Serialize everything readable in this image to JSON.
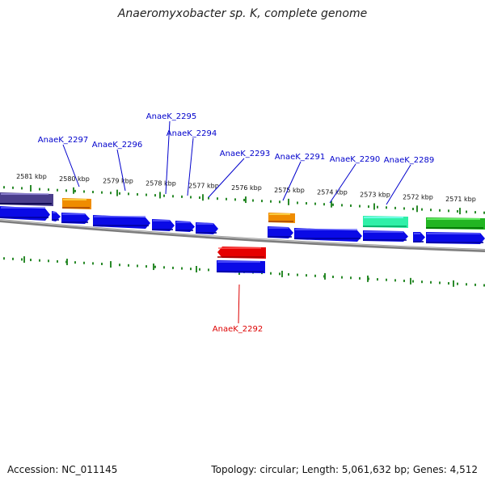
{
  "title": "Anaeromyxobacter sp. K, complete genome",
  "footer": {
    "accession": "Accession: NC_011145",
    "summary": "Topology: circular; Length: 5,061,632 bp; Genes: 4,512"
  },
  "colors": {
    "forward_strand": "#0a0ae6",
    "reverse_strand_pseudo": "#e60000",
    "orange_feature": "#ef8c00",
    "teal_feature": "#2ff0a8",
    "green_feature": "#22b522",
    "purple_feature": "#4a3e8c",
    "tick": "#2a8a2a",
    "backbone": "#808080",
    "label_forward": "#0000cc",
    "label_reverse": "#dd0000"
  },
  "ticks": [
    {
      "label": "2581 kbp"
    },
    {
      "label": "2580 kbp"
    },
    {
      "label": "2579 kbp"
    },
    {
      "label": "2578 kbp"
    },
    {
      "label": "2577 kbp"
    },
    {
      "label": "2576 kbp"
    },
    {
      "label": "2575 kbp"
    },
    {
      "label": "2574 kbp"
    },
    {
      "label": "2573 kbp"
    },
    {
      "label": "2572 kbp"
    },
    {
      "label": "2571 kbp"
    }
  ],
  "gene_labels": [
    {
      "name": "AnaeK_2297",
      "strand": "forward"
    },
    {
      "name": "AnaeK_2296",
      "strand": "forward"
    },
    {
      "name": "AnaeK_2295",
      "strand": "forward"
    },
    {
      "name": "AnaeK_2294",
      "strand": "forward"
    },
    {
      "name": "AnaeK_2293",
      "strand": "forward"
    },
    {
      "name": "AnaeK_2291",
      "strand": "forward"
    },
    {
      "name": "AnaeK_2290",
      "strand": "forward"
    },
    {
      "name": "AnaeK_2289",
      "strand": "forward"
    },
    {
      "name": "AnaeK_2292",
      "strand": "reverse"
    }
  ]
}
